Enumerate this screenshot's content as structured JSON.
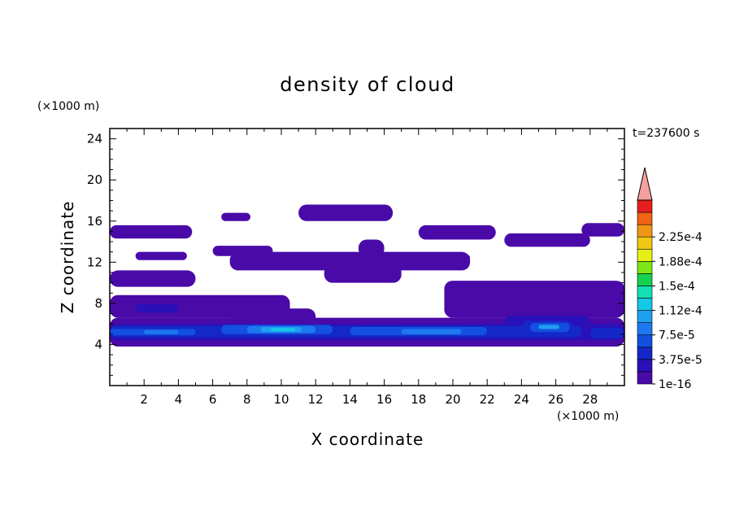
{
  "chart_data": {
    "type": "heatmap",
    "title": "density of cloud",
    "xlabel": "X coordinate",
    "ylabel": "Z coordinate",
    "x_unit": "(×1000 m)",
    "y_unit": "(×1000 m)",
    "time_label": "t=237600 s",
    "xlim": [
      0,
      30
    ],
    "ylim": [
      0,
      25
    ],
    "x_ticks": [
      "2",
      "4",
      "6",
      "8",
      "10",
      "12",
      "14",
      "16",
      "18",
      "20",
      "22",
      "24",
      "26",
      "28"
    ],
    "y_ticks": [
      "4",
      "8",
      "12",
      "16",
      "20",
      "24"
    ],
    "colorbar": {
      "labels": [
        "1e-16",
        "3.75e-5",
        "7.5e-5",
        "1.12e-4",
        "1.5e-4",
        "1.88e-4",
        "2.25e-4"
      ],
      "colors": [
        "#4a0aa8",
        "#2a10b8",
        "#1428c8",
        "#1450e0",
        "#1e78f0",
        "#1ea0f0",
        "#14c8e6",
        "#14e0b4",
        "#14d250",
        "#7ee614",
        "#e6f014",
        "#f0c814",
        "#f09614",
        "#f06414",
        "#e61e1e"
      ],
      "extend_color": "#f5a0a0"
    },
    "regions": [
      {
        "level": 0,
        "x": [
          0.0,
          30.0
        ],
        "z": [
          3.8,
          6.6
        ]
      },
      {
        "level": 0,
        "x": [
          0.0,
          10.5
        ],
        "z": [
          6.6,
          8.8
        ]
      },
      {
        "level": 0,
        "x": [
          19.5,
          30.0
        ],
        "z": [
          6.6,
          10.2
        ]
      },
      {
        "level": 0,
        "x": [
          0.0,
          5.0
        ],
        "z": [
          9.6,
          11.2
        ]
      },
      {
        "level": 0,
        "x": [
          7.0,
          12.0
        ],
        "z": [
          5.5,
          7.5
        ]
      },
      {
        "level": 0,
        "x": [
          1.5,
          4.5
        ],
        "z": [
          12.2,
          13.0
        ]
      },
      {
        "level": 0,
        "x": [
          6.0,
          9.5
        ],
        "z": [
          12.6,
          13.6
        ]
      },
      {
        "level": 0,
        "x": [
          7.0,
          21.0
        ],
        "z": [
          11.2,
          13.0
        ]
      },
      {
        "level": 0,
        "x": [
          12.5,
          17.0
        ],
        "z": [
          10.0,
          11.8
        ]
      },
      {
        "level": 0,
        "x": [
          0.0,
          4.8
        ],
        "z": [
          14.3,
          15.6
        ]
      },
      {
        "level": 0,
        "x": [
          6.5,
          8.2
        ],
        "z": [
          16.0,
          16.8
        ]
      },
      {
        "level": 0,
        "x": [
          11.0,
          16.5
        ],
        "z": [
          16.0,
          17.6
        ]
      },
      {
        "level": 0,
        "x": [
          14.5,
          16.0
        ],
        "z": [
          12.5,
          14.2
        ]
      },
      {
        "level": 0,
        "x": [
          18.0,
          22.5
        ],
        "z": [
          14.2,
          15.6
        ]
      },
      {
        "level": 0,
        "x": [
          23.0,
          28.0
        ],
        "z": [
          13.5,
          14.8
        ]
      },
      {
        "level": 0,
        "x": [
          27.5,
          30.0
        ],
        "z": [
          14.5,
          15.8
        ]
      },
      {
        "level": 0,
        "x": [
          17.0,
          21.0
        ],
        "z": [
          12.0,
          12.8
        ]
      },
      {
        "level": 1,
        "x": [
          0.0,
          30.0
        ],
        "z": [
          4.4,
          6.0
        ]
      },
      {
        "level": 1,
        "x": [
          23.0,
          28.0
        ],
        "z": [
          5.5,
          6.8
        ]
      },
      {
        "level": 1,
        "x": [
          1.5,
          4.0
        ],
        "z": [
          7.1,
          7.9
        ]
      },
      {
        "level": 2,
        "x": [
          0.0,
          27.5
        ],
        "z": [
          4.7,
          5.8
        ]
      },
      {
        "level": 2,
        "x": [
          24.0,
          27.0
        ],
        "z": [
          5.0,
          6.3
        ]
      },
      {
        "level": 2,
        "x": [
          28.0,
          30.0
        ],
        "z": [
          4.6,
          5.6
        ]
      },
      {
        "level": 3,
        "x": [
          0.0,
          5.0
        ],
        "z": [
          4.9,
          5.5
        ]
      },
      {
        "level": 3,
        "x": [
          6.5,
          13.0
        ],
        "z": [
          5.0,
          5.9
        ]
      },
      {
        "level": 3,
        "x": [
          14.0,
          22.0
        ],
        "z": [
          4.9,
          5.7
        ]
      },
      {
        "level": 3,
        "x": [
          24.5,
          26.8
        ],
        "z": [
          5.2,
          6.1
        ]
      },
      {
        "level": 4,
        "x": [
          8.0,
          12.0
        ],
        "z": [
          5.1,
          5.8
        ]
      },
      {
        "level": 4,
        "x": [
          17.0,
          20.5
        ],
        "z": [
          5.0,
          5.5
        ]
      },
      {
        "level": 4,
        "x": [
          2.0,
          4.0
        ],
        "z": [
          5.0,
          5.4
        ]
      },
      {
        "level": 5,
        "x": [
          8.8,
          11.2
        ],
        "z": [
          5.2,
          5.7
        ]
      },
      {
        "level": 5,
        "x": [
          25.0,
          26.2
        ],
        "z": [
          5.5,
          5.9
        ]
      },
      {
        "level": 6,
        "x": [
          9.4,
          10.8
        ],
        "z": [
          5.3,
          5.6
        ]
      }
    ]
  }
}
